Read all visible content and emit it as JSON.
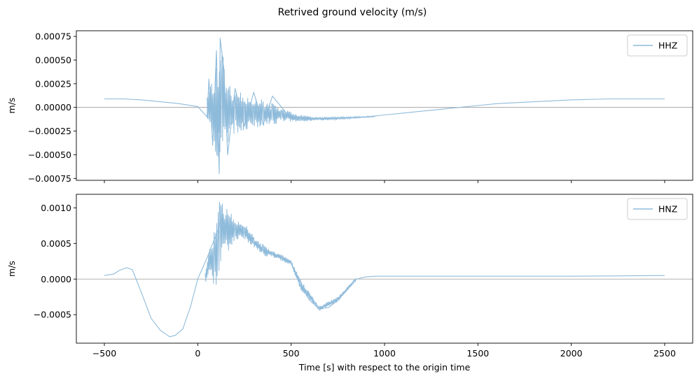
{
  "figure": {
    "suptitle": "Retrived ground velocity (m/s)",
    "xlabel": "Time [s] with respect to the origin time"
  },
  "chart_data": [
    {
      "type": "line",
      "ylabel": "m/s",
      "xlim": [
        -650,
        2650
      ],
      "ylim": [
        -0.00077,
        0.00081
      ],
      "xticks": [
        -500,
        0,
        500,
        1000,
        1500,
        2000,
        2500
      ],
      "yticks": [
        -0.00075,
        -0.0005,
        -0.00025,
        0.0,
        0.00025,
        0.0005,
        0.00075
      ],
      "ytick_labels": [
        "−0.00075",
        "−0.00050",
        "−0.00025",
        "0.00000",
        "0.00025",
        "0.00050",
        "0.00075"
      ],
      "hline": 0,
      "legend_position": "top-right",
      "series": [
        {
          "name": "HHZ",
          "color": "#8fbbdb",
          "x": [
            -500,
            -400,
            -300,
            -200,
            -100,
            0,
            50,
            60,
            80,
            100,
            115,
            120,
            140,
            160,
            200,
            250,
            300,
            350,
            400,
            500,
            600,
            700,
            800,
            900,
            1000,
            1100,
            1200,
            1300,
            1400,
            1500,
            1600,
            1800,
            2000,
            2200,
            2400,
            2500
          ],
          "y": [
            9e-05,
            9e-05,
            8e-05,
            6e-05,
            4e-05,
            1e-05,
            -0.0001,
            0.0003,
            -0.0004,
            0.0006,
            -0.0007,
            0.00073,
            0.0004,
            -0.0005,
            0.0002,
            -0.0002,
            0.00016,
            -0.00018,
            0.00012,
            -0.00012,
            -0.00012,
            -0.00012,
            -0.00011,
            -0.0001,
            -8e-05,
            -6e-05,
            -4e-05,
            -2e-05,
            0.0,
            2e-05,
            4e-05,
            6e-05,
            8e-05,
            9e-05,
            9e-05,
            9e-05
          ],
          "envelope": [
            {
              "x": 50,
              "lo": -0.0001,
              "hi": 0.0002
            },
            {
              "x": 80,
              "lo": -0.0004,
              "hi": 0.00035
            },
            {
              "x": 110,
              "lo": -0.0006,
              "hi": 0.0005
            },
            {
              "x": 130,
              "lo": -0.0006,
              "hi": 0.0006
            },
            {
              "x": 160,
              "lo": -0.0004,
              "hi": 0.0003
            },
            {
              "x": 200,
              "lo": -0.0003,
              "hi": 0.0002
            },
            {
              "x": 250,
              "lo": -0.00025,
              "hi": 0.00015
            },
            {
              "x": 300,
              "lo": -0.00022,
              "hi": 0.00012
            },
            {
              "x": 350,
              "lo": -0.0002,
              "hi": 8e-05
            },
            {
              "x": 400,
              "lo": -0.00018,
              "hi": 4e-05
            },
            {
              "x": 450,
              "lo": -0.00016,
              "hi": 0.0
            },
            {
              "x": 550,
              "lo": -0.00015,
              "hi": -8e-05
            },
            {
              "x": 650,
              "lo": -0.00014,
              "hi": -0.0001
            },
            {
              "x": 800,
              "lo": -0.00012,
              "hi": -0.0001
            },
            {
              "x": 950,
              "lo": -0.0001,
              "hi": -9e-05
            }
          ]
        }
      ]
    },
    {
      "type": "line",
      "ylabel": "m/s",
      "xlabel": "Time [s] with respect to the origin time",
      "xlim": [
        -650,
        2650
      ],
      "ylim": [
        -0.0009,
        0.00119
      ],
      "xticks": [
        -500,
        0,
        500,
        1000,
        1500,
        2000,
        2500
      ],
      "xtick_labels": [
        "−500",
        "0",
        "500",
        "1000",
        "1500",
        "2000",
        "2500"
      ],
      "yticks": [
        -0.0005,
        0.0,
        0.0005,
        0.001
      ],
      "ytick_labels": [
        "−0.0005",
        "0.0000",
        "0.0005",
        "0.0010"
      ],
      "hline": 0,
      "legend_position": "top-right",
      "series": [
        {
          "name": "HNZ",
          "color": "#8fbbdb",
          "x": [
            -500,
            -450,
            -420,
            -380,
            -350,
            -300,
            -250,
            -200,
            -150,
            -120,
            -80,
            -40,
            0,
            50,
            80,
            110,
            130,
            150,
            200,
            250,
            300,
            350,
            400,
            450,
            500,
            550,
            600,
            650,
            700,
            750,
            800,
            850,
            900,
            950,
            1000,
            1500,
            2000,
            2500
          ],
          "y": [
            5e-05,
            7e-05,
            0.00012,
            0.00016,
            0.00013,
            -0.0002,
            -0.00055,
            -0.00072,
            -0.00081,
            -0.00079,
            -0.0007,
            -0.0004,
            0.0,
            0.0003,
            0.0005,
            0.0007,
            0.0009,
            0.0007,
            0.0007,
            0.00065,
            0.0005,
            0.0004,
            0.00035,
            0.0003,
            0.00022,
            -0.0001,
            -0.0003,
            -0.00042,
            -0.0004,
            -0.0003,
            -0.00015,
            0.0,
            3e-05,
            4e-05,
            4e-05,
            4e-05,
            4e-05,
            5e-05
          ],
          "envelope": [
            {
              "x": 40,
              "lo": -5e-05,
              "hi": 0.00015
            },
            {
              "x": 70,
              "lo": 5e-05,
              "hi": 0.00055
            },
            {
              "x": 90,
              "lo": -0.00015,
              "hi": 0.0007
            },
            {
              "x": 110,
              "lo": -0.00025,
              "hi": 0.00095
            },
            {
              "x": 120,
              "lo": 0.0002,
              "hi": 0.00116
            },
            {
              "x": 150,
              "lo": 0.0003,
              "hi": 0.00105
            },
            {
              "x": 200,
              "lo": 0.00055,
              "hi": 0.00085
            },
            {
              "x": 250,
              "lo": 0.00055,
              "hi": 0.0008
            },
            {
              "x": 300,
              "lo": 0.00045,
              "hi": 0.0006
            },
            {
              "x": 350,
              "lo": 0.00033,
              "hi": 0.00048
            },
            {
              "x": 400,
              "lo": 0.0003,
              "hi": 0.0004
            },
            {
              "x": 450,
              "lo": 0.00025,
              "hi": 0.00034
            },
            {
              "x": 500,
              "lo": 0.0002,
              "hi": 0.00026
            },
            {
              "x": 550,
              "lo": -0.00015,
              "hi": 0.0
            },
            {
              "x": 650,
              "lo": -0.00045,
              "hi": -0.00038
            },
            {
              "x": 750,
              "lo": -0.00032,
              "hi": -0.00025
            },
            {
              "x": 850,
              "lo": -2e-05,
              "hi": 3e-05
            }
          ]
        }
      ]
    }
  ]
}
